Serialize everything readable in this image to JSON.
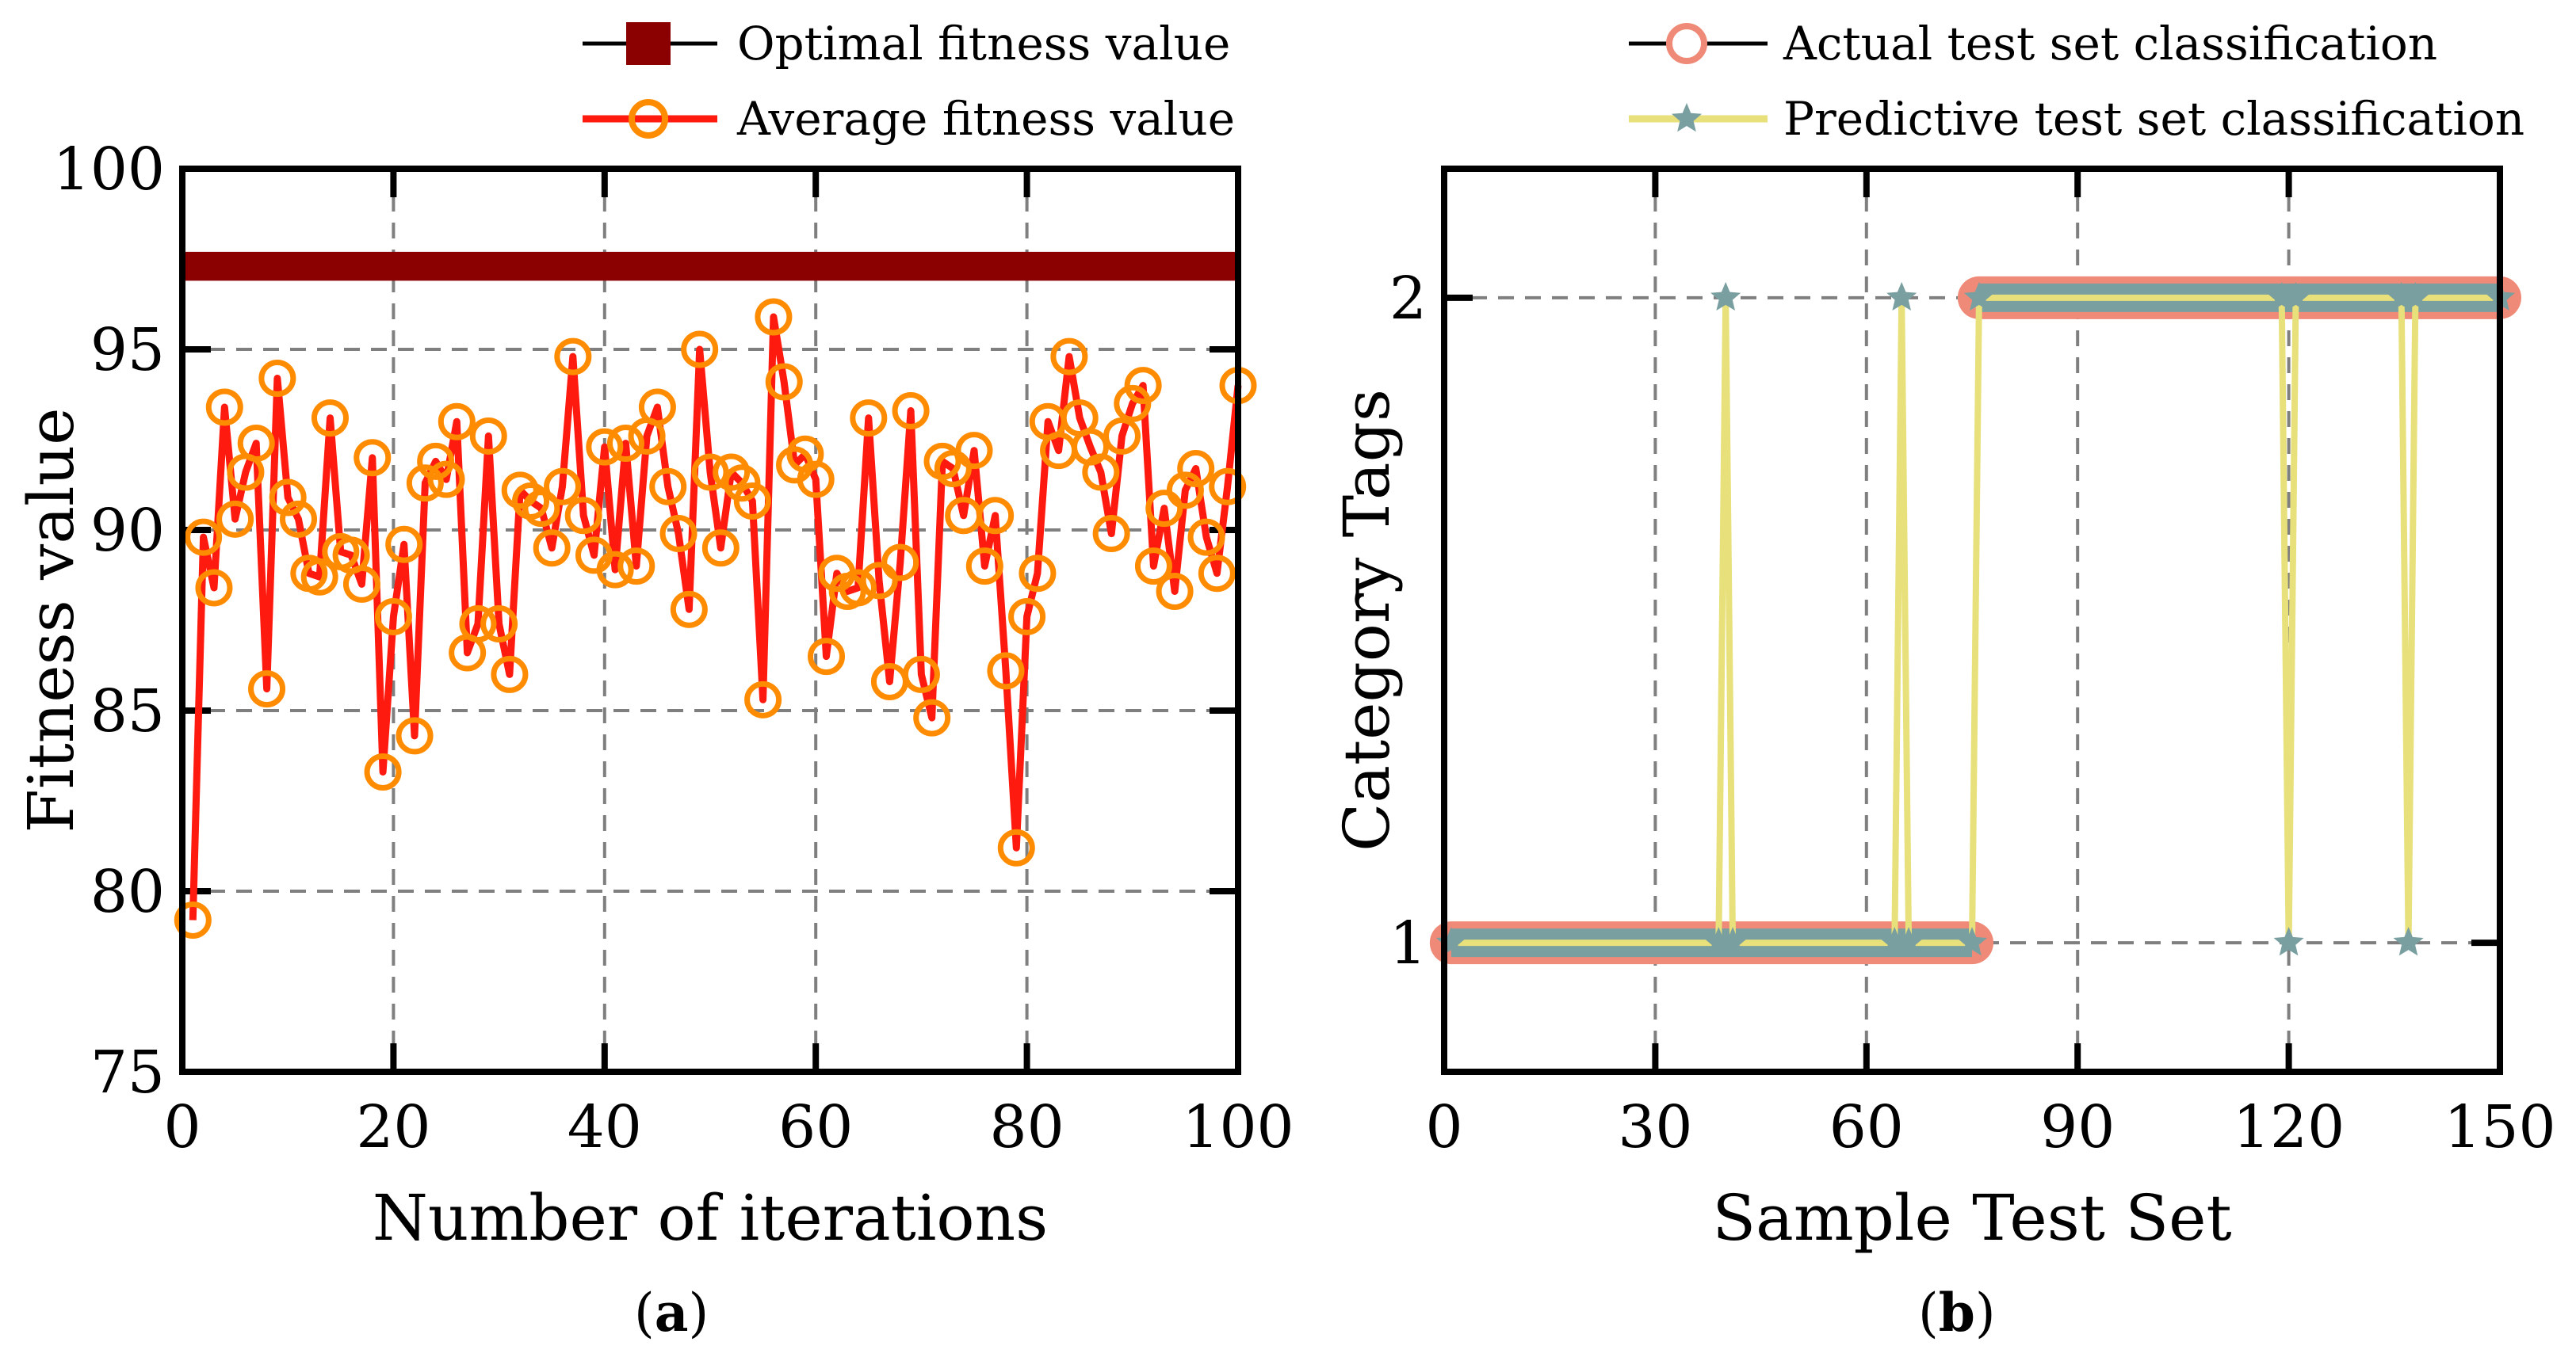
{
  "chart_data": [
    {
      "id": "a",
      "type": "line",
      "caption": "(a)",
      "caption_letter": "a",
      "xlabel": "Number of iterations",
      "ylabel": "Fitness value",
      "xlim": [
        0,
        100
      ],
      "ylim": [
        75,
        100
      ],
      "xticks": [
        0,
        20,
        40,
        60,
        80,
        100
      ],
      "yticks": [
        75,
        80,
        85,
        90,
        95,
        100
      ],
      "grid": true,
      "legend_position": "top",
      "series": [
        {
          "name": "Optimal fitness value",
          "color": "#8b0000",
          "marker": "square",
          "x": [
            1,
            100
          ],
          "values": [
            97.3,
            97.3
          ]
        },
        {
          "name": "Average fitness value",
          "color": "#ff1a0f",
          "marker_color": "#ff8c00",
          "marker": "circle",
          "x": [
            1,
            2,
            3,
            4,
            5,
            6,
            7,
            8,
            9,
            10,
            11,
            12,
            13,
            14,
            15,
            16,
            17,
            18,
            19,
            20,
            21,
            22,
            23,
            24,
            25,
            26,
            27,
            28,
            29,
            30,
            31,
            32,
            33,
            34,
            35,
            36,
            37,
            38,
            39,
            40,
            41,
            42,
            43,
            44,
            45,
            46,
            47,
            48,
            49,
            50,
            51,
            52,
            53,
            54,
            55,
            56,
            57,
            58,
            59,
            60,
            61,
            62,
            63,
            64,
            65,
            66,
            67,
            68,
            69,
            70,
            71,
            72,
            73,
            74,
            75,
            76,
            77,
            78,
            79,
            80,
            81,
            82,
            83,
            84,
            85,
            86,
            87,
            88,
            89,
            90,
            91,
            92,
            93,
            94,
            95,
            96,
            97,
            98,
            99,
            100
          ],
          "values": [
            79.2,
            89.8,
            88.4,
            93.4,
            90.3,
            91.6,
            92.4,
            85.6,
            94.2,
            90.9,
            90.3,
            88.8,
            88.7,
            93.1,
            89.4,
            89.3,
            88.5,
            92.0,
            83.3,
            87.6,
            89.6,
            84.3,
            91.3,
            91.9,
            91.4,
            93.0,
            86.6,
            87.4,
            92.6,
            87.4,
            86.0,
            91.1,
            90.8,
            90.6,
            89.5,
            91.2,
            94.8,
            90.4,
            89.3,
            92.3,
            88.9,
            92.4,
            89.0,
            92.6,
            93.4,
            91.2,
            89.9,
            87.8,
            95.0,
            91.6,
            89.5,
            91.6,
            91.3,
            90.8,
            85.3,
            95.9,
            94.1,
            91.8,
            92.1,
            91.4,
            86.5,
            88.8,
            88.3,
            88.4,
            93.1,
            88.6,
            85.8,
            89.1,
            93.3,
            86.0,
            84.8,
            91.9,
            91.7,
            90.4,
            92.2,
            89.0,
            90.4,
            86.1,
            81.2,
            87.6,
            88.8,
            93.0,
            92.2,
            94.8,
            93.1,
            92.3,
            91.6,
            89.9,
            92.6,
            93.5,
            94.0,
            89.0,
            90.6,
            88.3,
            91.1,
            91.7,
            89.8,
            88.8,
            91.2,
            94.0
          ]
        }
      ]
    },
    {
      "id": "b",
      "type": "line",
      "caption": "(b)",
      "caption_letter": "b",
      "xlabel": "Sample Test Set",
      "ylabel": "Category Tags",
      "xlim": [
        0,
        150
      ],
      "ylim": [
        0.8,
        2.2
      ],
      "xticks": [
        0,
        30,
        60,
        90,
        120,
        150
      ],
      "yticks": [
        1,
        2
      ],
      "grid": true,
      "legend_position": "top",
      "series": [
        {
          "name": "Actual test set classification",
          "color": "#000000",
          "marker_color": "#f08a78",
          "marker": "circle",
          "segments": [
            {
              "x_start": 1,
              "x_end": 75,
              "value": 1
            },
            {
              "x_start": 76,
              "x_end": 150,
              "value": 2
            }
          ]
        },
        {
          "name": "Predictive test set classification",
          "color": "#e8e07a",
          "marker_color": "#7a9fa0",
          "marker": "star",
          "x": [
            1,
            39,
            40,
            41,
            64,
            65,
            66,
            75,
            76,
            119,
            120,
            121,
            136,
            137,
            138,
            150
          ],
          "values": [
            1,
            1,
            2,
            1,
            1,
            2,
            1,
            1,
            2,
            2,
            1,
            2,
            2,
            1,
            2,
            2
          ]
        }
      ]
    }
  ]
}
